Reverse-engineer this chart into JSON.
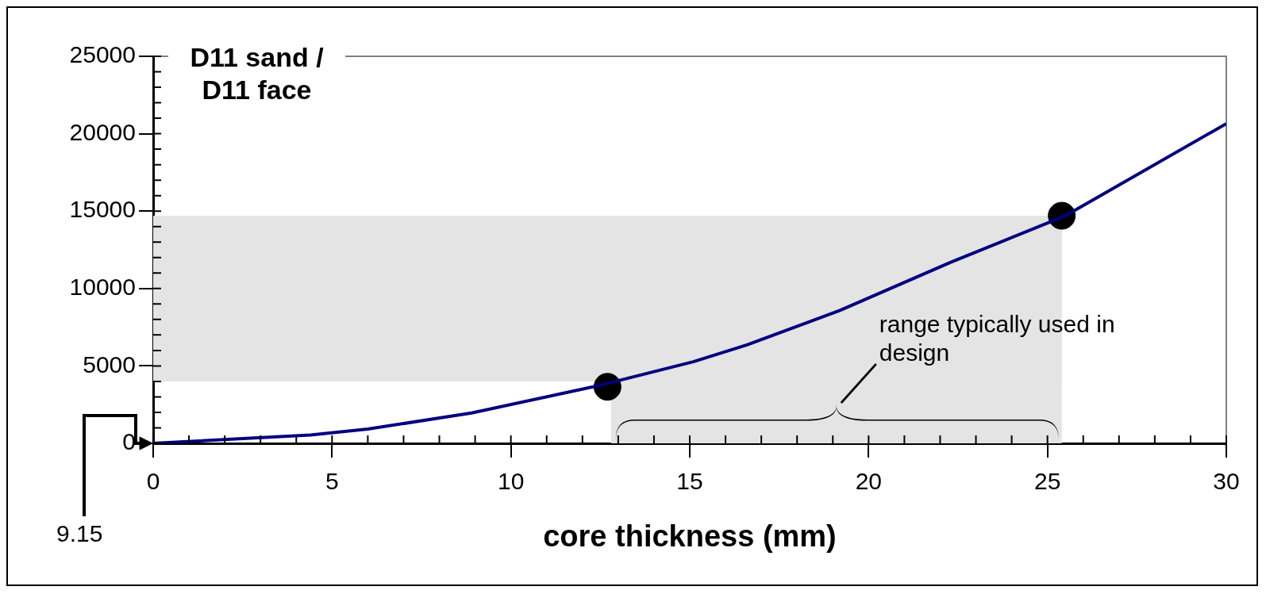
{
  "chart_data": {
    "type": "line",
    "ylabel": "D11 sand / D11 face",
    "xlabel": "core thickness (mm)",
    "xlim": [
      0,
      30
    ],
    "xticks": [
      0,
      5,
      10,
      15,
      20,
      25,
      30
    ],
    "ylim": [
      0,
      25000
    ],
    "yticks": [
      0,
      5000,
      10000,
      15000,
      20000,
      25000
    ],
    "grid": false,
    "legend": false,
    "marker": "none",
    "line_style": "solid",
    "series": [
      {
        "color": "#000080",
        "x": [
          0,
          4.4,
          6,
          8.9,
          12.4,
          15.1,
          16.6,
          19.2,
          22.3,
          25.5,
          30
        ],
        "values": [
          0,
          540,
          920,
          1960,
          3700,
          5270,
          6360,
          8590,
          11700,
          14700,
          20650
        ]
      },
      {
        "type": "scatter",
        "color": "#000000",
        "marker": "circle",
        "x": [
          12.7,
          25.4
        ],
        "values": [
          3650,
          14700
        ]
      }
    ],
    "bands": [
      {
        "axis": "y",
        "from": 4000,
        "to": 14700,
        "color": "#e4e4e4"
      },
      {
        "axis": "x",
        "from": 12.8,
        "to": 25.4,
        "color": "#e4e4e4"
      }
    ],
    "annotations": [
      "9.15",
      "range typically used in design"
    ]
  }
}
